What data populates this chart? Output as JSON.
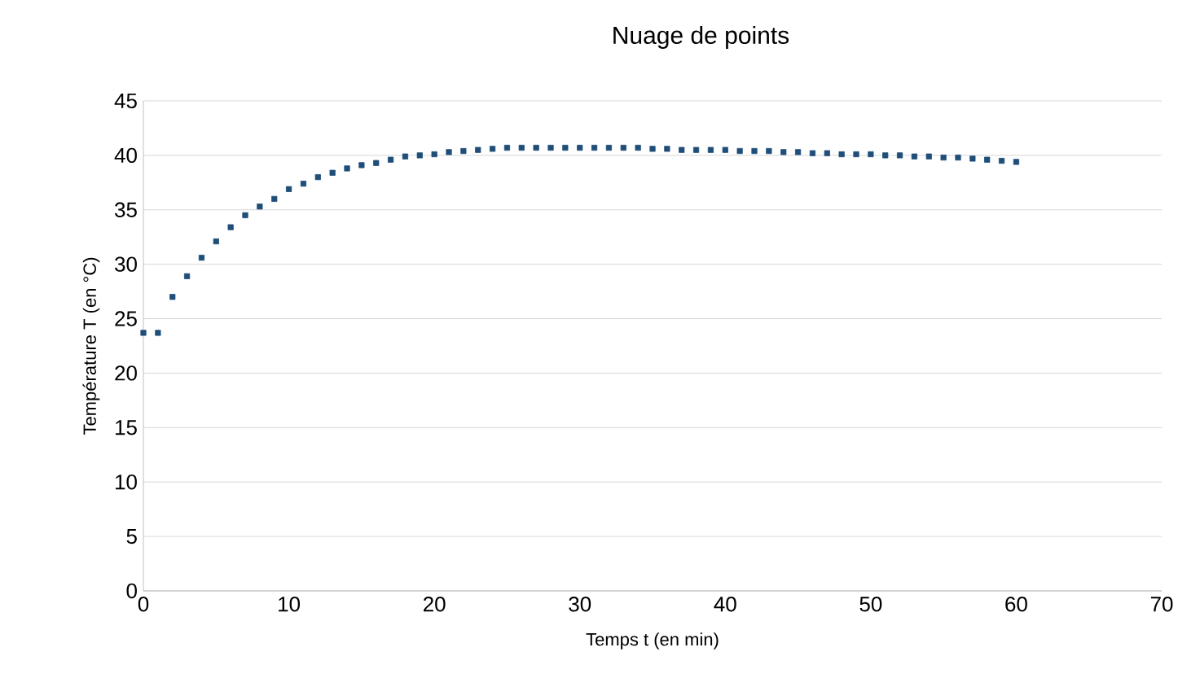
{
  "chart_data": {
    "type": "scatter",
    "title": "Nuage de points",
    "xlabel": "Temps t (en min)",
    "ylabel": "Température T (en °C)",
    "x": [
      0,
      1,
      2,
      3,
      4,
      5,
      6,
      7,
      8,
      9,
      10,
      11,
      12,
      13,
      14,
      15,
      16,
      17,
      18,
      19,
      20,
      21,
      22,
      23,
      24,
      25,
      26,
      27,
      28,
      29,
      30,
      31,
      32,
      33,
      34,
      35,
      36,
      37,
      38,
      39,
      40,
      41,
      42,
      43,
      44,
      45,
      46,
      47,
      48,
      49,
      50,
      51,
      52,
      53,
      54,
      55,
      56,
      57,
      58,
      59,
      60
    ],
    "series": [
      {
        "color": "#1f4e79",
        "values": [
          23.7,
          23.7,
          27.0,
          28.9,
          30.6,
          32.1,
          33.4,
          34.5,
          35.3,
          36.0,
          36.9,
          37.4,
          38.0,
          38.4,
          38.8,
          39.1,
          39.3,
          39.6,
          39.9,
          40.0,
          40.1,
          40.3,
          40.4,
          40.5,
          40.6,
          40.7,
          40.7,
          40.7,
          40.7,
          40.7,
          40.7,
          40.7,
          40.7,
          40.7,
          40.7,
          40.6,
          40.6,
          40.5,
          40.5,
          40.5,
          40.5,
          40.4,
          40.4,
          40.4,
          40.3,
          40.3,
          40.2,
          40.2,
          40.1,
          40.1,
          40.1,
          40.0,
          40.0,
          39.9,
          39.9,
          39.8,
          39.8,
          39.7,
          39.6,
          39.5,
          39.4
        ]
      }
    ],
    "xlim": [
      0,
      70
    ],
    "xticks": [
      0,
      10,
      20,
      30,
      40,
      50,
      60,
      70
    ],
    "ylim": [
      0,
      45
    ],
    "yticks": [
      0,
      5,
      10,
      15,
      20,
      25,
      30,
      35,
      40,
      45
    ],
    "grid": "y",
    "marker": "square"
  }
}
